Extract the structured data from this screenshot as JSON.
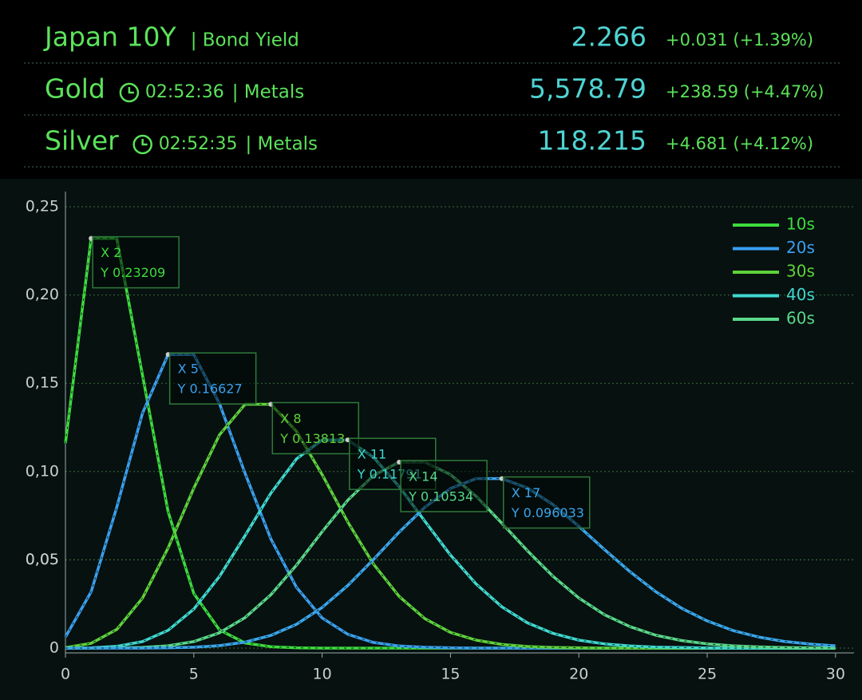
{
  "header": {
    "rows": [
      {
        "name": "Japan 10Y",
        "category": "| Bond Yield",
        "price": "2.266",
        "change": "+0.031 (+1.39%)"
      },
      {
        "name": "Gold",
        "time": "02:52:36",
        "category": "| Metals",
        "price": "5,578.79",
        "change": "+238.59 (+4.47%)"
      },
      {
        "name": "Silver",
        "time": "02:52:35",
        "category": "| Metals",
        "price": "118.215",
        "change": "+4.681 (+4.12%)"
      }
    ]
  },
  "chart_data": {
    "type": "line",
    "x": [
      0,
      1,
      2,
      3,
      4,
      5,
      6,
      7,
      8,
      9,
      10,
      11,
      12,
      13,
      14,
      15,
      16,
      17,
      18,
      19,
      20,
      21,
      22,
      23,
      24,
      25,
      26,
      27,
      28,
      29,
      30
    ],
    "xlim": [
      0,
      31
    ],
    "xticks": [
      0,
      5,
      10,
      15,
      20,
      25,
      30
    ],
    "ylim": [
      0,
      0.26
    ],
    "yticks": [
      0,
      {
        "value": 0.05,
        "label": "0,05"
      },
      {
        "value": 0.05,
        "label": "0,05"
      },
      {
        "value": 0.1,
        "label": "0,10"
      },
      {
        "value": 0.15,
        "label": "0,15"
      },
      {
        "value": 0.2,
        "label": "0,20"
      },
      {
        "value": 0.25,
        "label": "0,25"
      }
    ],
    "grid": true,
    "legend": "top-right",
    "series": [
      {
        "name": "10s",
        "color": "#3ddc3d",
        "values": [
          0.116,
          0.2321,
          0.23209,
          0.1547,
          0.0773,
          0.0309,
          0.0103,
          0.0029,
          0.0008,
          0.0002,
          0,
          0,
          0,
          0,
          0,
          0,
          0,
          0,
          0,
          0,
          0,
          0,
          0,
          0,
          0,
          0,
          0,
          0,
          0,
          0,
          0
        ]
      },
      {
        "name": "20s",
        "color": "#3a9ff0",
        "values": [
          0.0063,
          0.0319,
          0.0798,
          0.133,
          0.1663,
          0.16627,
          0.1385,
          0.0989,
          0.0619,
          0.0344,
          0.0171,
          0.0078,
          0.0032,
          0.0012,
          0.0005,
          0.0002,
          0,
          0,
          0,
          0,
          0,
          0,
          0,
          0,
          0,
          0,
          0,
          0,
          0,
          0,
          0
        ]
      },
      {
        "name": "30s",
        "color": "#5ed23a",
        "values": [
          0.0003,
          0.0027,
          0.0106,
          0.0283,
          0.0567,
          0.0906,
          0.1208,
          0.1381,
          0.13813,
          0.1228,
          0.0983,
          0.0714,
          0.0476,
          0.0293,
          0.0167,
          0.0089,
          0.0045,
          0.0021,
          0.0009,
          0.0004,
          0.0002,
          0,
          0,
          0,
          0,
          0,
          0,
          0,
          0,
          0,
          0
        ]
      },
      {
        "name": "40s",
        "color": "#3fd9d0",
        "values": [
          0,
          0.0002,
          0.001,
          0.0037,
          0.0101,
          0.0221,
          0.0406,
          0.0638,
          0.0877,
          0.1072,
          0.1179,
          0.11791,
          0.1081,
          0.0915,
          0.0719,
          0.0527,
          0.0363,
          0.0234,
          0.0143,
          0.0083,
          0.0045,
          0.0024,
          0.0012,
          0.0006,
          0.0003,
          0.0001,
          0,
          0,
          0,
          0,
          0
        ]
      },
      {
        "name": "60s",
        "color": "#5ad88a",
        "values": [
          0,
          0,
          0.0001,
          0.0004,
          0.0013,
          0.0037,
          0.0087,
          0.0173,
          0.0302,
          0.047,
          0.0659,
          0.0838,
          0.0978,
          0.10534,
          0.10534,
          0.0983,
          0.086,
          0.0708,
          0.0551,
          0.0406,
          0.0284,
          0.0189,
          0.0121,
          0.0073,
          0.0043,
          0.0024,
          0.0013,
          0.0007,
          0.0003,
          0.0002,
          0.0001
        ]
      },
      {
        "color": "#3aa6ee",
        "values": [
          0,
          0,
          0,
          0,
          0.0002,
          0.0005,
          0.0014,
          0.0034,
          0.0072,
          0.0135,
          0.023,
          0.0355,
          0.0502,
          0.0657,
          0.0798,
          0.0904,
          0.096,
          0.096033,
          0.0907,
          0.0812,
          0.069,
          0.0558,
          0.0432,
          0.0319,
          0.0226,
          0.0154,
          0.01,
          0.0063,
          0.0038,
          0.0023,
          0.0013
        ]
      }
    ],
    "annotations": [
      {
        "x": "X 2",
        "y": "Y 0.23209"
      },
      {
        "x": "X 5",
        "y": "Y 0.16627"
      },
      {
        "x": "X 8",
        "y": "Y 0.13813"
      },
      {
        "x": "X 11",
        "y": "Y 0.11791"
      },
      {
        "x": "X 14",
        "y": "Y 0.10534"
      },
      {
        "x": "X 17",
        "y": "Y 0.096033"
      }
    ]
  }
}
